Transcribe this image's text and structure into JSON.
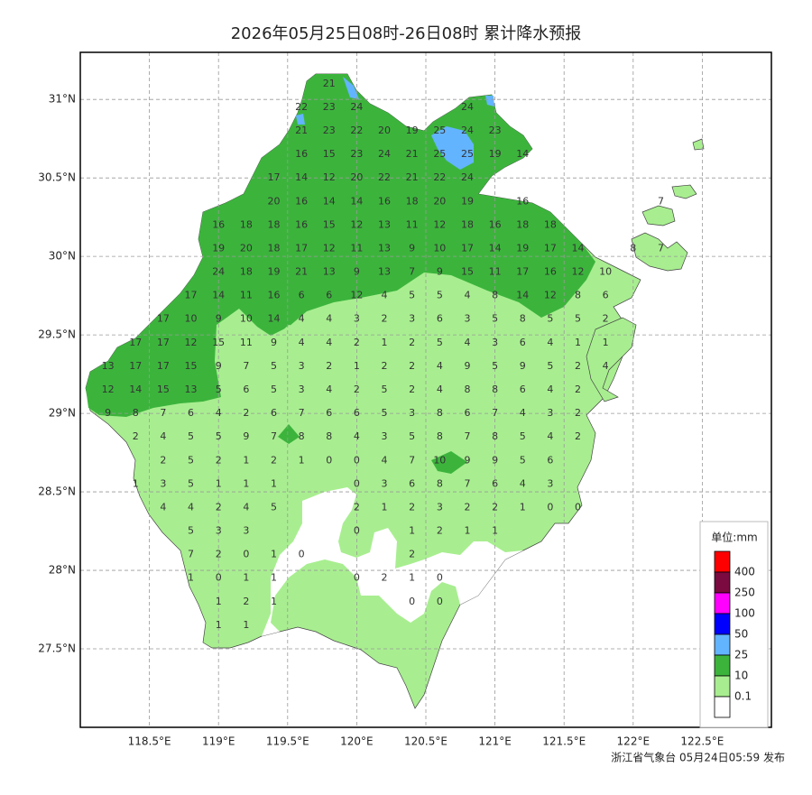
{
  "title": "2026年05月25日08时-26日08时 累计降水预报",
  "footer": "浙江省气象台 05月24日05:59 发布",
  "map": {
    "xlim": [
      118,
      123
    ],
    "ylim": [
      27,
      31.3
    ],
    "grid": true,
    "xticks": [
      {
        "value": 118.5,
        "label": "118.5°E"
      },
      {
        "value": 119,
        "label": "119°E"
      },
      {
        "value": 119.5,
        "label": "119.5°E"
      },
      {
        "value": 120,
        "label": "120°E"
      },
      {
        "value": 120.5,
        "label": "120.5°E"
      },
      {
        "value": 121,
        "label": "121°E"
      },
      {
        "value": 121.5,
        "label": "121.5°E"
      },
      {
        "value": 122,
        "label": "122°E"
      },
      {
        "value": 122.5,
        "label": "122.5°E"
      }
    ],
    "yticks": [
      {
        "value": 27.5,
        "label": "27.5°N"
      },
      {
        "value": 28,
        "label": "28°N"
      },
      {
        "value": 28.5,
        "label": "28.5°N"
      },
      {
        "value": 29,
        "label": "29°N"
      },
      {
        "value": 29.5,
        "label": "29.5°N"
      },
      {
        "value": 30,
        "label": "30°N"
      },
      {
        "value": 30.5,
        "label": "30.5°N"
      },
      {
        "value": 31,
        "label": "31°N"
      }
    ]
  },
  "grid_values": {
    "lons": [
      118.2,
      118.4,
      118.6,
      118.8,
      119.0,
      119.2,
      119.4,
      119.6,
      119.8,
      120.0,
      120.2,
      120.4,
      120.6,
      120.8,
      121.0,
      121.2,
      121.4,
      121.6,
      121.8,
      122.0,
      122.2
    ],
    "rows": [
      {
        "lat": 31.1,
        "values": [
          null,
          null,
          null,
          null,
          null,
          null,
          null,
          null,
          21,
          null,
          null,
          null,
          null,
          null,
          null,
          null,
          null,
          null,
          null,
          null,
          null
        ]
      },
      {
        "lat": 30.95,
        "values": [
          null,
          null,
          null,
          null,
          null,
          null,
          null,
          22,
          23,
          24,
          null,
          null,
          null,
          24,
          null,
          null,
          null,
          null,
          null,
          null,
          null
        ]
      },
      {
        "lat": 30.8,
        "values": [
          null,
          null,
          null,
          null,
          null,
          null,
          null,
          21,
          23,
          22,
          20,
          19,
          25,
          24,
          23,
          null,
          null,
          null,
          null,
          null,
          null
        ]
      },
      {
        "lat": 30.65,
        "values": [
          null,
          null,
          null,
          null,
          null,
          null,
          null,
          16,
          15,
          23,
          24,
          21,
          25,
          25,
          19,
          14,
          null,
          null,
          null,
          null,
          null
        ]
      },
      {
        "lat": 30.5,
        "values": [
          null,
          null,
          null,
          null,
          null,
          null,
          17,
          14,
          12,
          20,
          22,
          21,
          22,
          24,
          null,
          null,
          null,
          null,
          null,
          null,
          null
        ]
      },
      {
        "lat": 30.35,
        "values": [
          null,
          null,
          null,
          null,
          null,
          null,
          20,
          16,
          14,
          14,
          16,
          18,
          20,
          19,
          null,
          16,
          null,
          null,
          null,
          null,
          7
        ]
      },
      {
        "lat": 30.2,
        "values": [
          null,
          null,
          null,
          null,
          16,
          18,
          18,
          16,
          15,
          12,
          13,
          11,
          12,
          18,
          16,
          18,
          18,
          null,
          null,
          null,
          null
        ]
      },
      {
        "lat": 30.05,
        "values": [
          null,
          null,
          null,
          null,
          19,
          20,
          18,
          17,
          12,
          11,
          13,
          9,
          10,
          17,
          14,
          19,
          17,
          14,
          null,
          8,
          7
        ]
      },
      {
        "lat": 29.9,
        "values": [
          null,
          null,
          null,
          null,
          24,
          18,
          19,
          21,
          13,
          9,
          13,
          7,
          9,
          15,
          11,
          17,
          16,
          12,
          10,
          null,
          null
        ]
      },
      {
        "lat": 29.75,
        "values": [
          null,
          null,
          null,
          17,
          14,
          11,
          16,
          6,
          6,
          12,
          4,
          5,
          5,
          4,
          8,
          14,
          12,
          8,
          6,
          null,
          null
        ]
      },
      {
        "lat": 29.6,
        "values": [
          null,
          null,
          17,
          10,
          9,
          10,
          14,
          4,
          4,
          3,
          2,
          3,
          6,
          3,
          5,
          8,
          5,
          5,
          2,
          null,
          null
        ]
      },
      {
        "lat": 29.45,
        "values": [
          null,
          17,
          17,
          12,
          15,
          11,
          9,
          4,
          4,
          2,
          1,
          2,
          5,
          4,
          3,
          6,
          4,
          1,
          1,
          null,
          null
        ]
      },
      {
        "lat": 29.3,
        "values": [
          13,
          17,
          17,
          15,
          9,
          7,
          5,
          3,
          2,
          1,
          2,
          2,
          4,
          9,
          5,
          9,
          5,
          2,
          4,
          null,
          null
        ]
      },
      {
        "lat": 29.15,
        "values": [
          12,
          14,
          15,
          13,
          5,
          6,
          5,
          3,
          4,
          2,
          5,
          2,
          4,
          8,
          8,
          6,
          4,
          2,
          null,
          null,
          null
        ]
      },
      {
        "lat": 29.0,
        "values": [
          9,
          8,
          7,
          6,
          4,
          2,
          6,
          7,
          6,
          6,
          5,
          3,
          8,
          6,
          7,
          4,
          3,
          2,
          null,
          null,
          null
        ]
      },
      {
        "lat": 28.85,
        "values": [
          null,
          2,
          4,
          5,
          5,
          9,
          7,
          8,
          8,
          4,
          3,
          5,
          8,
          7,
          8,
          5,
          4,
          2,
          null,
          null,
          null
        ]
      },
      {
        "lat": 28.7,
        "values": [
          null,
          null,
          2,
          5,
          2,
          1,
          2,
          1,
          0,
          0,
          4,
          7,
          10,
          9,
          9,
          5,
          6,
          null,
          null,
          null,
          null
        ]
      },
      {
        "lat": 28.55,
        "values": [
          null,
          1,
          3,
          5,
          1,
          1,
          1,
          null,
          null,
          0,
          3,
          6,
          8,
          7,
          6,
          4,
          3,
          null,
          null,
          null,
          null
        ]
      },
      {
        "lat": 28.4,
        "values": [
          null,
          null,
          4,
          4,
          2,
          4,
          5,
          null,
          null,
          2,
          1,
          2,
          3,
          2,
          2,
          1,
          0,
          0,
          null,
          null,
          null
        ]
      },
      {
        "lat": 28.25,
        "values": [
          null,
          null,
          null,
          5,
          3,
          3,
          null,
          null,
          null,
          0,
          null,
          1,
          2,
          1,
          1,
          null,
          null,
          null,
          null,
          null,
          null
        ]
      },
      {
        "lat": 28.1,
        "values": [
          null,
          null,
          null,
          7,
          2,
          0,
          1,
          0,
          null,
          null,
          null,
          2,
          null,
          null,
          null,
          null,
          null,
          null,
          null,
          null,
          null
        ]
      },
      {
        "lat": 27.95,
        "values": [
          null,
          null,
          null,
          1,
          0,
          1,
          1,
          null,
          null,
          0,
          2,
          1,
          0,
          null,
          null,
          null,
          null,
          null,
          null,
          null,
          null
        ]
      },
      {
        "lat": 27.8,
        "values": [
          null,
          null,
          null,
          null,
          1,
          2,
          1,
          null,
          null,
          null,
          null,
          0,
          0,
          null,
          null,
          null,
          null,
          null,
          null,
          null,
          null
        ]
      },
      {
        "lat": 27.65,
        "values": [
          null,
          null,
          null,
          null,
          1,
          1,
          null,
          null,
          null,
          null,
          null,
          null,
          null,
          null,
          null,
          null,
          null,
          null,
          null,
          null,
          null
        ]
      }
    ]
  },
  "legend": {
    "title": "单位:mm",
    "levels": [
      400,
      250,
      100,
      50,
      25,
      10,
      0.1
    ],
    "colors": [
      "#ff0000",
      "#7a0a40",
      "#ff00ff",
      "#0000ff",
      "#63b4ff",
      "#3cb43c",
      "#a8ee90",
      "#ffffff"
    ]
  }
}
